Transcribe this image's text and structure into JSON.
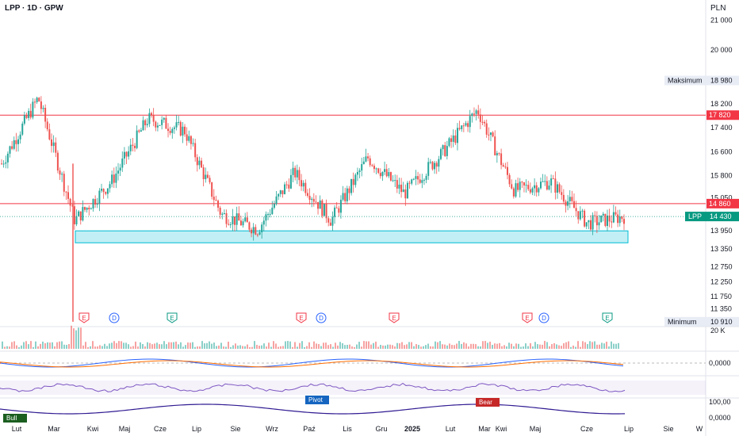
{
  "header": {
    "symbol": "LPP",
    "interval": "1D",
    "exchange": "GPW",
    "title": "LPP · 1D · GPW",
    "currency": "PLN"
  },
  "colors": {
    "up": "#26a69a",
    "down": "#ef5350",
    "resistance": "#f23645",
    "zone_fill": "#b2ebf2",
    "zone_stroke": "#00bcd4",
    "price_tag": "#089981",
    "earnings": "#f23645",
    "dividend": "#2962ff",
    "other_event": "#089981"
  },
  "chart_data": {
    "type": "candlestick",
    "title": "LPP · 1D · GPW",
    "currency": "PLN",
    "x_labels": [
      "Lut",
      "Mar",
      "Kwi",
      "Maj",
      "Cze",
      "Lip",
      "Sie",
      "Wrz",
      "Paź",
      "Lis",
      "Gru",
      "2025",
      "Lut",
      "Mar",
      "Kwi",
      "Maj",
      "Cze",
      "Lip",
      "Sie",
      "W"
    ],
    "x_label_bold": [
      "2025"
    ],
    "y_ticks": [
      21000,
      20000,
      18200,
      17400,
      16600,
      15800,
      15050,
      13950,
      13350,
      12750,
      12250,
      11750,
      11350
    ],
    "ylim": [
      10800,
      21300
    ],
    "price_series_monthly": {
      "months": [
        "Lut",
        "Mar",
        "Kwi",
        "Maj",
        "Cze",
        "Lip",
        "Sie",
        "Wrz",
        "Paź",
        "Lis",
        "Gru",
        "2025",
        "Lut",
        "Mar",
        "Kwi",
        "Maj",
        "Cze",
        "Lip"
      ],
      "close": [
        16200,
        18400,
        14300,
        15600,
        17700,
        17300,
        14500,
        14000,
        15900,
        14300,
        16400,
        15200,
        16500,
        18000,
        15300,
        15600,
        14200,
        14430
      ]
    },
    "reference_lines": [
      {
        "label": "17 820",
        "value": 17820
      },
      {
        "label": "14 860",
        "value": 14860
      }
    ],
    "support_zone": {
      "from": 13550,
      "to": 13950,
      "start": "Kwi",
      "end": "Lip"
    },
    "tags": [
      {
        "label": "Maksimum",
        "value_text": "18 980",
        "value": 18980
      },
      {
        "label": "LPP",
        "value_text": "14 430",
        "value": 14430
      },
      {
        "label": "Minimum",
        "value_text": "10 910",
        "value": 10910
      }
    ],
    "events": [
      {
        "type": "E",
        "month": "Mar",
        "tone": "earnings"
      },
      {
        "type": "D",
        "month": "Kwi",
        "tone": "dividend"
      },
      {
        "type": "E",
        "month": "Cze",
        "tone": "other_event"
      },
      {
        "type": "E",
        "month": "Wrz",
        "tone": "earnings"
      },
      {
        "type": "D",
        "month": "Paź",
        "tone": "dividend"
      },
      {
        "type": "E",
        "month": "Gru",
        "tone": "earnings"
      },
      {
        "type": "E",
        "month": "Kwi",
        "tone": "earnings"
      },
      {
        "type": "D",
        "month": "Kwi",
        "tone": "dividend"
      },
      {
        "type": "E",
        "month": "Lip",
        "tone": "other_event"
      }
    ],
    "panels": {
      "volume": {
        "label": "20 K"
      },
      "macd": {
        "label": "0,0000"
      },
      "rsi": {
        "label": ""
      },
      "momentum": {
        "label": "100,00",
        "label2": "0,0000",
        "markers": [
          "Bull",
          "Pivot",
          "Bear"
        ]
      }
    }
  }
}
